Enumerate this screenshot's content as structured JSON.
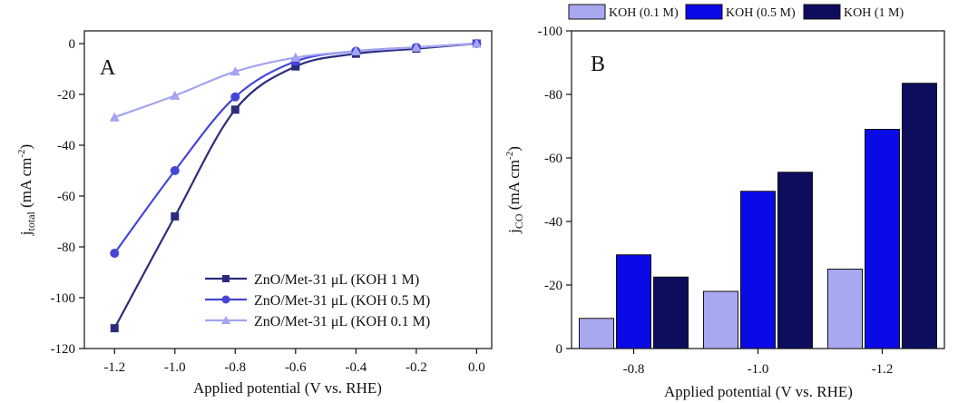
{
  "chart_data": [
    {
      "type": "line",
      "panel_label": "A",
      "xlabel": "Applied potential (V vs. RHE)",
      "ylabel_main": "j",
      "ylabel_sub": "total",
      "ylabel_unit": " (mA cm",
      "ylabel_sup": "-2",
      "ylabel_close": ")",
      "xlim": [
        -1.3,
        0.05
      ],
      "ylim": [
        -120,
        5
      ],
      "xticks": [
        -1.2,
        -1.0,
        -0.8,
        -0.6,
        -0.4,
        -0.2,
        0.0
      ],
      "xtick_labels": [
        "-1.2",
        "-1.0",
        "-0.8",
        "-0.6",
        "-0.4",
        "-0.2",
        "0.0"
      ],
      "yticks": [
        0,
        -20,
        -40,
        -60,
        -80,
        -100,
        -120
      ],
      "ytick_labels": [
        "0",
        "-20",
        "-40",
        "-60",
        "-80",
        "-100",
        "-120"
      ],
      "legend_position": "bottom-right",
      "x": [
        -1.2,
        -1.0,
        -0.8,
        -0.6,
        -0.4,
        -0.2,
        0.0
      ],
      "series": [
        {
          "name": "ZnO/Met-31 μL (KOH 1 M)",
          "marker": "square",
          "color": "#2b2d7c",
          "values": [
            -112,
            -68,
            -26,
            -9,
            -4,
            -2,
            0
          ]
        },
        {
          "name": "ZnO/Met-31 μL (KOH 0.5 M)",
          "marker": "circle",
          "color": "#4545d8",
          "values": [
            -82.5,
            -50,
            -21,
            -7,
            -3,
            -1.5,
            0
          ]
        },
        {
          "name": "ZnO/Met-31 μL (KOH 0.1 M)",
          "marker": "triangle",
          "color": "#a3a3f0",
          "values": [
            -29,
            -20.5,
            -11,
            -5.5,
            -3,
            -1.5,
            0
          ]
        }
      ]
    },
    {
      "type": "bar",
      "panel_label": "B",
      "xlabel": "Applied potential (V vs. RHE)",
      "ylabel_main": "j",
      "ylabel_sub": "CO",
      "ylabel_unit": " (mA cm",
      "ylabel_sup": "-2",
      "ylabel_close": ")",
      "categories": [
        "-0.8",
        "-1.0",
        "-1.2"
      ],
      "ylim": [
        0,
        -100
      ],
      "yticks": [
        0,
        -20,
        -40,
        -60,
        -80,
        -100
      ],
      "ytick_labels": [
        "0",
        "-20",
        "-40",
        "-60",
        "-80",
        "-100"
      ],
      "legend_position": "top",
      "series": [
        {
          "name": "KOH (0.1 M)",
          "color": "#a8a8f0",
          "values": [
            -9.5,
            -18,
            -25
          ]
        },
        {
          "name": "KOH (0.5 M)",
          "color": "#0a0ae6",
          "values": [
            -29.5,
            -49.5,
            -69
          ]
        },
        {
          "name": "KOH (1 M)",
          "color": "#0d0d5e",
          "values": [
            -22.5,
            -55.5,
            -83.5
          ]
        }
      ]
    }
  ]
}
